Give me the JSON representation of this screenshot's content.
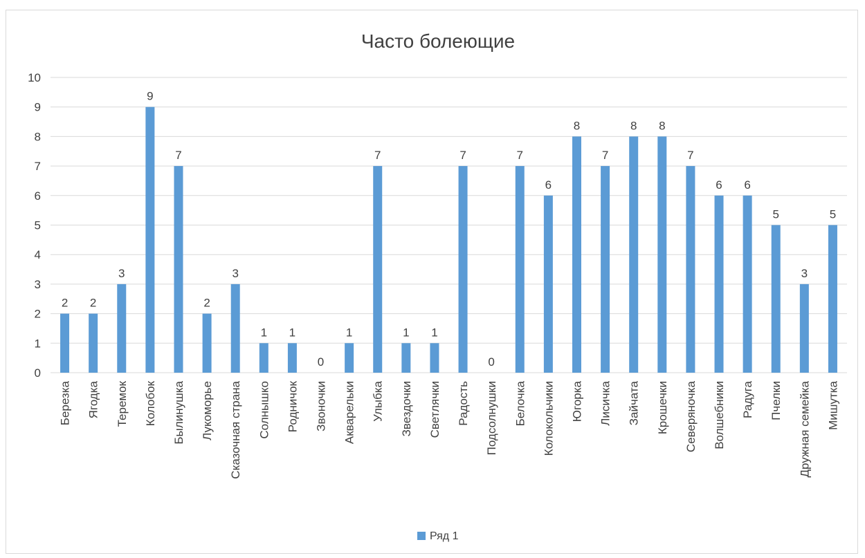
{
  "chart_data": {
    "type": "bar",
    "title": "Часто болеющие",
    "xlabel": "",
    "ylabel": "",
    "ylim": [
      0,
      10
    ],
    "yticks": [
      0,
      1,
      2,
      3,
      4,
      5,
      6,
      7,
      8,
      9,
      10
    ],
    "grid": true,
    "legend_position": "bottom",
    "bar_color": "#5B9BD5",
    "categories": [
      "Березка",
      "Ягодка",
      "Теремок",
      "Колобок",
      "Былинушка",
      "Лукоморье",
      "Сказочная страна",
      "Солнышко",
      "Родничок",
      "Звоночки",
      "Акварельки",
      "Улыбка",
      "Звездочки",
      "Светлячки",
      "Радость",
      "Подсолнушки",
      "Белочка",
      "Колокольчики",
      "Югорка",
      "Лисичка",
      "Зайчата",
      "Крошечки",
      "Северяночка",
      "Волшебники",
      "Радуга",
      "Пчелки",
      "Дружная семейка",
      "Мишутка"
    ],
    "series": [
      {
        "name": "Ряд 1",
        "values": [
          2,
          2,
          3,
          9,
          7,
          2,
          3,
          1,
          1,
          0,
          1,
          7,
          1,
          1,
          7,
          0,
          7,
          6,
          8,
          7,
          8,
          8,
          7,
          6,
          6,
          5,
          3,
          5
        ]
      }
    ]
  }
}
